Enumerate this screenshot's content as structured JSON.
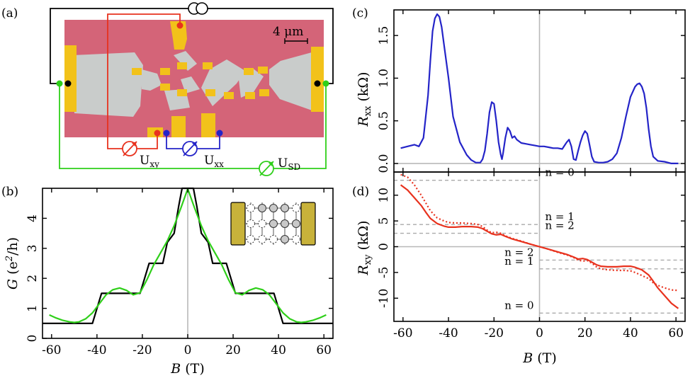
{
  "colors": {
    "green": "#2fcf1a",
    "black_curve": "#000000",
    "blue": "#2424c8",
    "red": "#e8321e",
    "zero_line": "#b8b8b8",
    "guide_line": "#aaaaaa",
    "device_bg": "#d46478",
    "device_gray": "#c9cccb",
    "device_gold": "#f2c21a",
    "inset_gold": "#c8b23a",
    "inset_dot": "#c9c9c9"
  },
  "panels": {
    "a": "(a)",
    "b": "(b)",
    "c": "(c)",
    "d": "(d)"
  },
  "device": {
    "scale_bar_label": "4 μm",
    "u_xy": {
      "main": "U",
      "sub": "xy"
    },
    "u_xx": {
      "main": "U",
      "sub": "xx"
    },
    "u_sd": {
      "main": "U",
      "sub": "SD"
    }
  },
  "chart_data": [
    {
      "id": "b",
      "type": "line",
      "xlabel_main": "B",
      "xlabel_unit": " (T)",
      "ylabel_g": "G",
      "ylabel_open": " (e",
      "ylabel_sup": "2",
      "ylabel_close": "/h)",
      "xlim": [
        -64,
        64
      ],
      "ylim": [
        0,
        5
      ],
      "xticks": [
        -60,
        -40,
        -20,
        0,
        20,
        40,
        60
      ],
      "yticks": [
        0,
        1,
        2,
        3,
        4
      ],
      "series": [
        {
          "name": "quantized steps",
          "color": "black",
          "x": [
            -64,
            -42,
            -40,
            -38,
            -21,
            -19,
            -17,
            -11,
            -9,
            -6,
            -4,
            -2.5,
            2.5,
            4,
            6,
            9,
            11,
            17,
            19,
            21,
            38,
            40,
            42,
            64
          ],
          "y": [
            0.5,
            0.5,
            1.0,
            1.5,
            1.5,
            2.0,
            2.5,
            2.5,
            3.2,
            3.5,
            4.4,
            5.0,
            5.0,
            4.4,
            3.5,
            3.2,
            2.5,
            2.5,
            2.0,
            1.5,
            1.5,
            1.0,
            0.5,
            0.5
          ]
        },
        {
          "name": "calculated",
          "color": "green",
          "x": [
            -61,
            -58,
            -55,
            -52,
            -50,
            -48,
            -45,
            -42,
            -39,
            -36,
            -33,
            -30,
            -27,
            -24,
            -21,
            -18,
            -15,
            -12,
            -9,
            -6,
            -3,
            0,
            3,
            6,
            9,
            12,
            15,
            18,
            21,
            24,
            27,
            30,
            33,
            36,
            39,
            42,
            45,
            48,
            50,
            52,
            55,
            58,
            61
          ],
          "y": [
            0.78,
            0.68,
            0.6,
            0.55,
            0.53,
            0.55,
            0.65,
            0.85,
            1.15,
            1.45,
            1.62,
            1.68,
            1.6,
            1.45,
            1.52,
            1.95,
            2.45,
            2.85,
            3.25,
            3.75,
            4.35,
            4.98,
            4.35,
            3.75,
            3.25,
            2.85,
            2.45,
            1.95,
            1.52,
            1.45,
            1.6,
            1.68,
            1.62,
            1.45,
            1.15,
            0.85,
            0.65,
            0.55,
            0.53,
            0.55,
            0.6,
            0.68,
            0.78
          ]
        }
      ],
      "inset": "schematic of quantum point contact lattice"
    },
    {
      "id": "c",
      "type": "line",
      "ylabel_main": "R",
      "ylabel_sub": "xx",
      "ylabel_unit": " (kΩ)",
      "xlim": [
        -64,
        64
      ],
      "ylim": [
        -0.1,
        1.8
      ],
      "yticks": [
        0.0,
        0.5,
        1.0,
        1.5
      ],
      "series": [
        {
          "name": "Rxx",
          "color": "blue",
          "x": [
            -61,
            -58,
            -55,
            -53,
            -51,
            -49,
            -48,
            -47,
            -46,
            -45,
            -44,
            -43,
            -42,
            -40,
            -38,
            -35,
            -32,
            -30,
            -28,
            -26,
            -25,
            -24,
            -23,
            -22,
            -21,
            -20,
            -19,
            -18,
            -17,
            -16.5,
            -16,
            -15,
            -14,
            -13,
            -12,
            -11,
            -10,
            -8,
            -6,
            -4,
            -2,
            0,
            2,
            4,
            6,
            8,
            10,
            11,
            12,
            13,
            14,
            15,
            16,
            17,
            18,
            19,
            20,
            21,
            22,
            23,
            24,
            26,
            28,
            30,
            32,
            34,
            36,
            38,
            40,
            42,
            43,
            44,
            45,
            46,
            47,
            48,
            49,
            50,
            52,
            55,
            58,
            61
          ],
          "y": [
            0.18,
            0.2,
            0.22,
            0.2,
            0.3,
            0.8,
            1.2,
            1.55,
            1.7,
            1.75,
            1.72,
            1.6,
            1.4,
            1.0,
            0.55,
            0.25,
            0.1,
            0.04,
            0.01,
            0.01,
            0.05,
            0.15,
            0.35,
            0.6,
            0.72,
            0.7,
            0.5,
            0.25,
            0.1,
            0.05,
            0.12,
            0.3,
            0.42,
            0.38,
            0.3,
            0.32,
            0.28,
            0.24,
            0.23,
            0.22,
            0.21,
            0.2,
            0.2,
            0.19,
            0.18,
            0.18,
            0.17,
            0.21,
            0.25,
            0.28,
            0.2,
            0.05,
            0.04,
            0.15,
            0.25,
            0.33,
            0.38,
            0.35,
            0.22,
            0.08,
            0.02,
            0.01,
            0.01,
            0.02,
            0.05,
            0.12,
            0.3,
            0.55,
            0.78,
            0.9,
            0.93,
            0.94,
            0.9,
            0.82,
            0.65,
            0.4,
            0.2,
            0.08,
            0.03,
            0.02,
            0.0,
            0.0
          ]
        }
      ]
    },
    {
      "id": "d",
      "type": "line",
      "xlabel_main": "B",
      "xlabel_unit": " (T)",
      "ylabel_main": "R",
      "ylabel_sub": "xy",
      "ylabel_unit": " (kΩ)",
      "xlim": [
        -64,
        64
      ],
      "ylim": [
        -14.5,
        14.5
      ],
      "xticks": [
        -60,
        -40,
        -20,
        0,
        20,
        40,
        60
      ],
      "yticks": [
        -10,
        -5,
        0,
        5,
        10
      ],
      "series": [
        {
          "name": "Rxy solid",
          "color": "red",
          "dash": false,
          "x": [
            -61,
            -58,
            -55,
            -52,
            -50,
            -48,
            -45,
            -42,
            -40,
            -37,
            -34,
            -30,
            -27,
            -25,
            -23,
            -21,
            -19,
            -17,
            -15,
            -12,
            -8,
            -4,
            0,
            4,
            8,
            12,
            15,
            17,
            19,
            21,
            23,
            25,
            27,
            30,
            34,
            37,
            40,
            42,
            45,
            48,
            50,
            52,
            55,
            58,
            61
          ],
          "y": [
            12.0,
            11.0,
            9.5,
            8.0,
            6.7,
            5.5,
            4.5,
            4.0,
            3.8,
            3.8,
            3.9,
            3.9,
            3.8,
            3.5,
            3.0,
            2.5,
            2.3,
            2.4,
            2.0,
            1.5,
            1.0,
            0.5,
            0.0,
            -0.5,
            -1.0,
            -1.5,
            -2.0,
            -2.4,
            -2.3,
            -2.5,
            -3.0,
            -3.5,
            -3.8,
            -3.9,
            -3.9,
            -3.8,
            -3.8,
            -4.0,
            -4.5,
            -5.5,
            -6.7,
            -8.0,
            -9.5,
            -11.0,
            -12.0
          ]
        },
        {
          "name": "Rxy dotted",
          "color": "red",
          "dash": true,
          "x": [
            -61,
            -58,
            -55,
            -52,
            -50,
            -48,
            -45,
            -42,
            -40,
            -37,
            -34,
            -30,
            -27,
            -25,
            -23,
            -21,
            -19,
            -17,
            -15,
            -12,
            -8,
            -4,
            0,
            4,
            8,
            12,
            15,
            17,
            19,
            21,
            23,
            25,
            27,
            30,
            34,
            37,
            40,
            42,
            45,
            48,
            50,
            52,
            55,
            58,
            61
          ],
          "y": [
            14.0,
            13.5,
            12.0,
            10.0,
            8.5,
            7.0,
            5.6,
            5.0,
            4.7,
            4.6,
            4.6,
            4.5,
            4.3,
            3.9,
            3.2,
            2.7,
            2.8,
            2.6,
            2.1,
            1.6,
            1.1,
            0.5,
            0.0,
            -0.5,
            -1.1,
            -1.6,
            -2.1,
            -2.6,
            -2.8,
            -2.7,
            -3.2,
            -3.9,
            -4.3,
            -4.5,
            -4.6,
            -4.6,
            -4.7,
            -5.0,
            -5.6,
            -6.2,
            -7.0,
            -7.5,
            -8.0,
            -8.4,
            -8.5
          ]
        }
      ],
      "guides": [
        {
          "y": 12.9,
          "side": "left",
          "label": "n = 0"
        },
        {
          "y": 4.3,
          "side": "left",
          "label": "n = 1"
        },
        {
          "y": 2.6,
          "side": "left",
          "label": "n = 2"
        },
        {
          "y": -2.6,
          "side": "right",
          "label": "n = 2"
        },
        {
          "y": -4.3,
          "side": "right",
          "label": "n = 1"
        },
        {
          "y": -12.9,
          "side": "right",
          "label": "n = 0"
        }
      ]
    }
  ]
}
